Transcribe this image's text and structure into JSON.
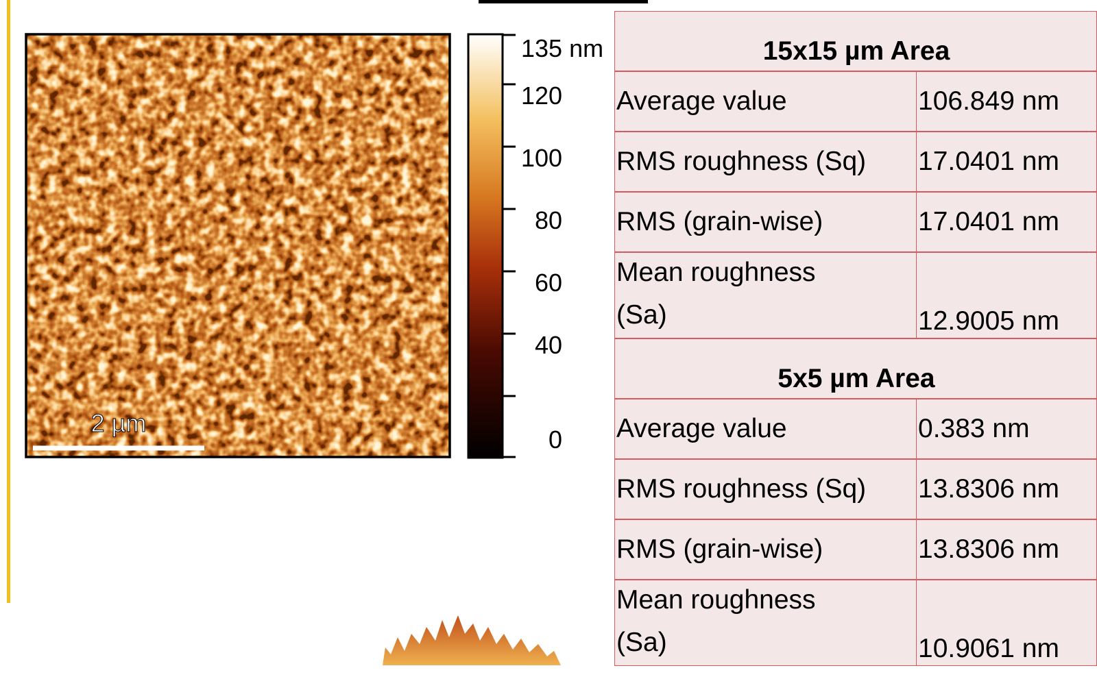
{
  "image": {
    "scale_bar": "2 µm"
  },
  "colorbar": {
    "labels": [
      "135 nm",
      "120",
      "100",
      "80",
      "60",
      "40",
      "0"
    ]
  },
  "table": {
    "sections": [
      {
        "title": "15x15 µm Area",
        "rows": [
          [
            "Average value",
            "106.849 nm"
          ],
          [
            "RMS roughness (Sq)",
            "17.0401 nm"
          ],
          [
            "RMS (grain-wise)",
            "17.0401 nm"
          ],
          [
            "Mean roughness (Sa)",
            "12.9005 nm"
          ]
        ]
      },
      {
        "title": "5x5 µm Area",
        "rows": [
          [
            "Average value",
            "0.383 nm"
          ],
          [
            "RMS roughness (Sq)",
            "13.8306 nm"
          ],
          [
            "RMS (grain-wise)",
            "13.8306 nm"
          ],
          [
            "Mean roughness (Sa)",
            "10.9061 nm"
          ]
        ]
      }
    ]
  }
}
